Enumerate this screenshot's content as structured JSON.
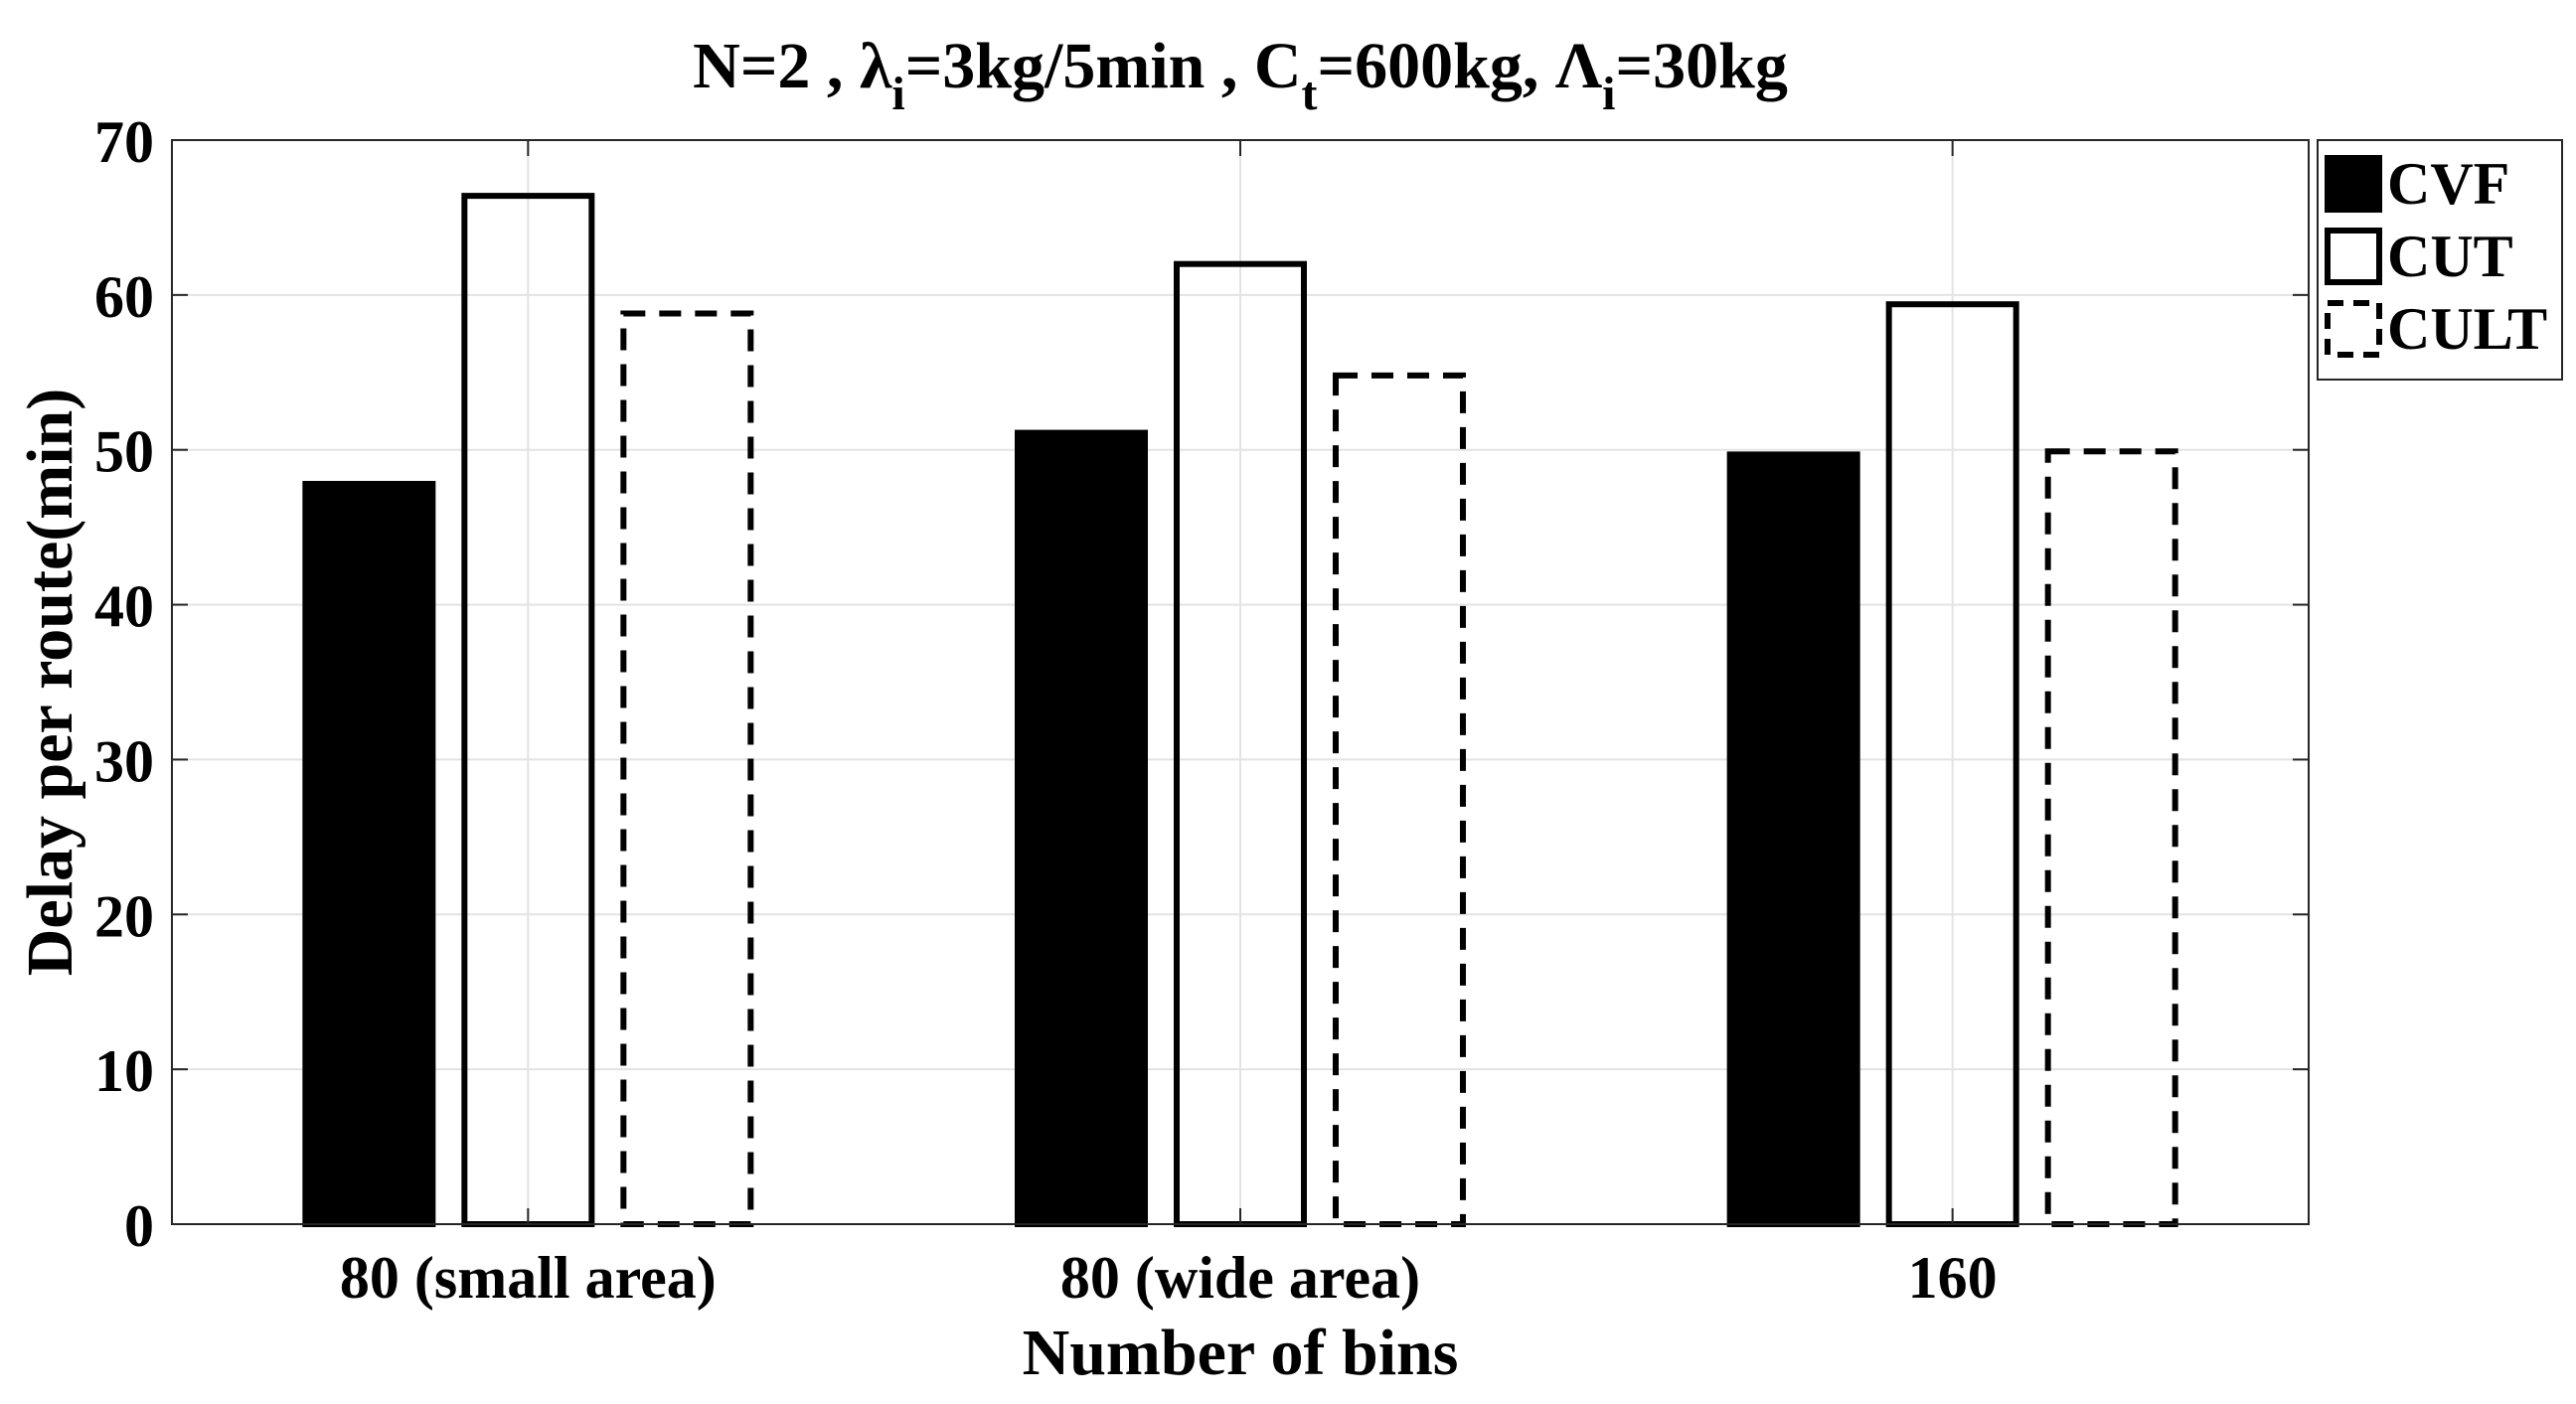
{
  "chart_data": {
    "type": "bar",
    "title": {
      "parts": [
        {
          "text": "N=2 , "
        },
        {
          "text": "λ"
        },
        {
          "text": "i",
          "sub": true
        },
        {
          "text": "=3kg/5min , C"
        },
        {
          "text": "t",
          "sub": true
        },
        {
          "text": "=600kg, Λ"
        },
        {
          "text": "i",
          "sub": true
        },
        {
          "text": "=30kg"
        }
      ]
    },
    "xlabel": "Number of bins",
    "ylabel": "Delay per route(min)",
    "categories": [
      "80 (small area)",
      "80 (wide area)",
      "160"
    ],
    "ylim": [
      0,
      70
    ],
    "yticks": [
      0,
      10,
      20,
      30,
      40,
      50,
      60,
      70
    ],
    "grid": true,
    "legend_position": "outside-top-right",
    "series": [
      {
        "name": "CVF",
        "style": "filled",
        "values": [
          47.8,
          51.1,
          49.7
        ]
      },
      {
        "name": "CUT",
        "style": "outline",
        "values": [
          66.4,
          62.0,
          59.4
        ]
      },
      {
        "name": "CULT",
        "style": "dashed",
        "values": [
          58.8,
          54.8,
          49.9
        ]
      }
    ]
  }
}
